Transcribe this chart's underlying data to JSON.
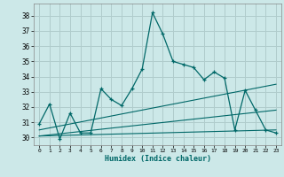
{
  "xlabel": "Humidex (Indice chaleur)",
  "background_color": "#cce8e8",
  "grid_color": "#b0cccc",
  "line_color": "#006868",
  "xlim": [
    -0.5,
    23.5
  ],
  "ylim": [
    29.5,
    38.8
  ],
  "yticks": [
    30,
    31,
    32,
    33,
    34,
    35,
    36,
    37,
    38
  ],
  "xticks": [
    0,
    1,
    2,
    3,
    4,
    5,
    6,
    7,
    8,
    9,
    10,
    11,
    12,
    13,
    14,
    15,
    16,
    17,
    18,
    19,
    20,
    21,
    22,
    23
  ],
  "line1_x": [
    0,
    1,
    2,
    3,
    4,
    5,
    6,
    7,
    8,
    9,
    10,
    11,
    12,
    13,
    14,
    15,
    16,
    17,
    18,
    19,
    20,
    21,
    22,
    23
  ],
  "line1_y": [
    30.9,
    32.2,
    29.9,
    31.6,
    30.3,
    30.3,
    33.2,
    32.5,
    32.1,
    33.2,
    34.5,
    38.2,
    36.8,
    35.0,
    34.8,
    34.6,
    33.8,
    34.3,
    33.9,
    30.5,
    33.1,
    31.8,
    30.5,
    30.3
  ],
  "line2_x": [
    0,
    23
  ],
  "line2_y": [
    30.1,
    31.8
  ],
  "line3_x": [
    0,
    23
  ],
  "line3_y": [
    30.5,
    33.5
  ],
  "line4_x": [
    0,
    23
  ],
  "line4_y": [
    30.1,
    30.5
  ]
}
